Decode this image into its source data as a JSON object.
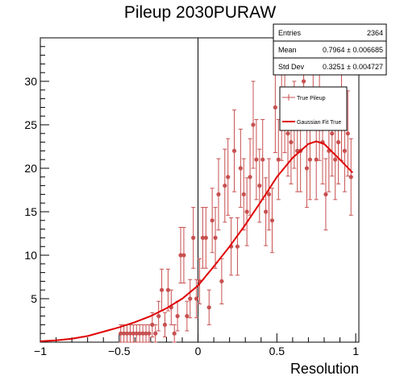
{
  "chart_data": {
    "type": "scatter",
    "title": "Pileup 2030PURAW",
    "xlabel": "Resolution",
    "ylabel": "",
    "xlim": [
      -1.0,
      1.02
    ],
    "ylim": [
      0,
      35
    ],
    "x_ticks": [
      -1,
      -0.5,
      0,
      0.5,
      1
    ],
    "x_tick_labels": [
      "−1",
      "−0.5",
      "0",
      "0.5",
      "1"
    ],
    "y_ticks": [
      5,
      10,
      15,
      20,
      25,
      30
    ],
    "y_tick_labels": [
      "5",
      "10",
      "15",
      "20",
      "25",
      "30"
    ],
    "grid": false,
    "legend_position": "top-right",
    "stats": {
      "entries_label": "Entries",
      "entries_value": "2364",
      "mean_label": "Mean",
      "mean_value": "0.7964 ± 0.006685",
      "stddev_label": "Std Dev",
      "stddev_value": "0.3251 ± 0.004727"
    },
    "series": [
      {
        "name": "True Pileup",
        "kind": "points-with-errors",
        "color": "#c85050",
        "x": [
          -0.49,
          -0.47,
          -0.45,
          -0.43,
          -0.41,
          -0.39,
          -0.37,
          -0.35,
          -0.33,
          -0.31,
          -0.29,
          -0.27,
          -0.25,
          -0.23,
          -0.21,
          -0.19,
          -0.17,
          -0.15,
          -0.13,
          -0.11,
          -0.09,
          -0.07,
          -0.05,
          -0.03,
          -0.01,
          0.01,
          0.03,
          0.05,
          0.07,
          0.09,
          0.11,
          0.13,
          0.15,
          0.17,
          0.19,
          0.21,
          0.23,
          0.25,
          0.27,
          0.29,
          0.31,
          0.33,
          0.35,
          0.37,
          0.39,
          0.41,
          0.43,
          0.45,
          0.47,
          0.49,
          0.51,
          0.53,
          0.55,
          0.57,
          0.59,
          0.61,
          0.63,
          0.65,
          0.67,
          0.69,
          0.71,
          0.73,
          0.75,
          0.77,
          0.79,
          0.81,
          0.83,
          0.85,
          0.87,
          0.89,
          0.91,
          0.93,
          0.95,
          0.97
        ],
        "y": [
          1,
          1,
          1,
          1,
          1,
          1,
          1,
          1,
          1,
          1,
          2,
          1,
          3,
          6,
          2,
          6,
          4,
          1,
          3,
          10,
          10,
          3,
          5,
          12,
          5,
          7,
          12,
          12,
          4,
          14,
          12,
          17,
          7,
          18,
          19,
          11,
          22,
          11,
          20,
          17,
          15,
          19,
          25,
          21,
          18,
          21,
          15,
          17,
          14,
          27,
          21,
          26,
          27,
          24,
          23,
          25,
          22,
          22,
          30,
          20,
          21,
          33,
          21,
          26,
          23,
          17,
          22,
          24,
          21,
          23,
          26,
          22,
          24,
          19
        ],
        "err": [
          1,
          1,
          1,
          1,
          1,
          1,
          1,
          1,
          1,
          1,
          1.4,
          1,
          1.7,
          2.4,
          1.4,
          2.4,
          2,
          1,
          1.7,
          3.2,
          3.2,
          1.7,
          2.2,
          3.5,
          2.2,
          2.6,
          3.5,
          3.5,
          2,
          3.7,
          3.5,
          4.1,
          2.6,
          4.2,
          4.4,
          3.3,
          4.7,
          3.3,
          4.5,
          4.1,
          3.9,
          4.4,
          5,
          4.6,
          4.2,
          4.6,
          3.9,
          4.1,
          3.7,
          5.2,
          4.6,
          5.1,
          5.2,
          4.9,
          4.8,
          5,
          4.7,
          4.7,
          5.5,
          4.5,
          4.6,
          5.7,
          4.6,
          5.1,
          4.8,
          4.1,
          4.7,
          4.9,
          4.6,
          4.8,
          5.1,
          4.7,
          4.9,
          4.4
        ]
      },
      {
        "name": "Gaussian Fit True",
        "kind": "line",
        "color": "#e00000",
        "x": [
          -1,
          -0.9,
          -0.8,
          -0.7,
          -0.6,
          -0.5,
          -0.4,
          -0.3,
          -0.2,
          -0.1,
          0,
          0.1,
          0.2,
          0.3,
          0.4,
          0.5,
          0.6,
          0.7,
          0.75,
          0.8,
          0.9,
          0.98
        ],
        "y": [
          0.1,
          0.2,
          0.4,
          0.7,
          1.2,
          1.7,
          2.3,
          3,
          3.9,
          5,
          6.5,
          8.7,
          11,
          13.5,
          16.2,
          19,
          21.2,
          22.8,
          23.1,
          22.8,
          21,
          19.5
        ]
      }
    ]
  }
}
